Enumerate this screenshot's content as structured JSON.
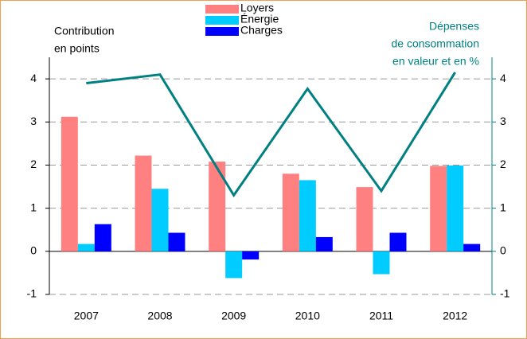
{
  "chart_data": {
    "type": "bar+line",
    "y_label": [
      "Contribution",
      "en points"
    ],
    "y2_label": [
      "Dépenses",
      "de consommation",
      "en valeur et en %"
    ],
    "categories": [
      "2007",
      "2008",
      "2009",
      "2010",
      "2011",
      "2012"
    ],
    "series": [
      {
        "name": "Loyers",
        "color": "#ff8080",
        "type": "bar",
        "values": [
          3.12,
          2.22,
          2.08,
          1.8,
          1.49,
          1.98
        ]
      },
      {
        "name": "Énergie",
        "color": "#00ccff",
        "type": "bar",
        "values": [
          0.17,
          1.45,
          -0.62,
          1.65,
          -0.53,
          1.99
        ]
      },
      {
        "name": "Charges",
        "color": "#0000ff",
        "type": "bar",
        "values": [
          0.63,
          0.43,
          -0.19,
          0.33,
          0.43,
          0.17
        ]
      },
      {
        "name": "Dépenses de consommation",
        "color": "#008080",
        "type": "line",
        "axis": "y2",
        "values": [
          3.9,
          4.1,
          1.3,
          3.77,
          1.4,
          4.15
        ]
      }
    ],
    "ylim": [
      -1,
      4.5
    ],
    "yticks": [
      -1,
      0,
      1,
      2,
      3,
      4
    ],
    "y2lim": [
      -1,
      4.5
    ],
    "y2ticks": [
      -1,
      0,
      1,
      2,
      3,
      4
    ],
    "grid": true
  }
}
